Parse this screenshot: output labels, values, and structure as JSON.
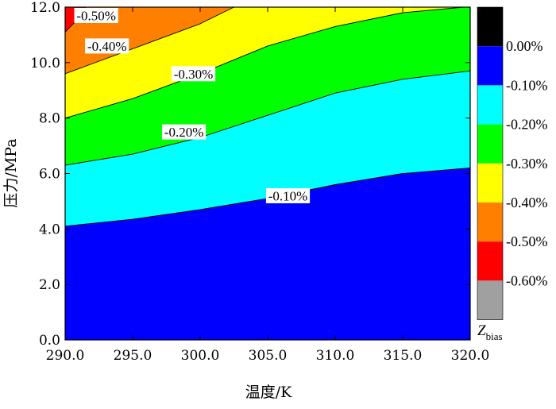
{
  "chart_data": {
    "type": "contour",
    "xlabel": "温度/K",
    "ylabel": "压力/MPa",
    "xlim": [
      290,
      320
    ],
    "ylim": [
      0,
      12
    ],
    "x_ticks": [
      "290.0",
      "295.0",
      "300.0",
      "305.0",
      "310.0",
      "315.0",
      "320.0"
    ],
    "y_ticks": [
      "0.0",
      "2.0",
      "4.0",
      "6.0",
      "8.0",
      "10.0",
      "12.0"
    ],
    "contours": [
      {
        "level": "-0.10%",
        "x": [
          290,
          295,
          300,
          305,
          310,
          315,
          320
        ],
        "y": [
          4.1,
          4.35,
          4.7,
          5.1,
          5.6,
          6.0,
          6.2
        ]
      },
      {
        "level": "-0.20%",
        "x": [
          290,
          295,
          300,
          305,
          310,
          315,
          320
        ],
        "y": [
          6.3,
          6.7,
          7.3,
          8.1,
          8.9,
          9.4,
          9.7
        ]
      },
      {
        "level": "-0.30%",
        "x": [
          290,
          295,
          300,
          305,
          310,
          315,
          319.5
        ],
        "y": [
          8.0,
          8.7,
          9.6,
          10.6,
          11.3,
          11.8,
          12.0
        ]
      },
      {
        "level": "-0.40%",
        "x": [
          290,
          295,
          300,
          302.5
        ],
        "y": [
          9.6,
          10.5,
          11.4,
          12.0
        ]
      },
      {
        "level": "-0.50%",
        "x": [
          290,
          290.8,
          291.5
        ],
        "y": [
          11.1,
          11.5,
          12.0
        ]
      }
    ],
    "contour_labels": [
      {
        "text": "-0.50%",
        "x": 292.3,
        "y": 11.7
      },
      {
        "text": "-0.40%",
        "x": 293.1,
        "y": 10.6
      },
      {
        "text": "-0.30%",
        "x": 299.5,
        "y": 9.6
      },
      {
        "text": "-0.20%",
        "x": 298.8,
        "y": 7.5
      },
      {
        "text": "-0.10%",
        "x": 306.5,
        "y": 5.2
      }
    ],
    "colorbar": {
      "title": "Z",
      "title_subscript": "bias",
      "colors": [
        "#000000",
        "#0000ff",
        "#00ffff",
        "#00ff00",
        "#ffff00",
        "#ff8000",
        "#ff0000",
        "#a0a0a0"
      ],
      "labels": [
        "0.00%",
        "-0.10%",
        "-0.20%",
        "-0.30%",
        "-0.40%",
        "-0.50%",
        "-0.60%"
      ]
    },
    "fill_colors": [
      "#0000ff",
      "#00ffff",
      "#00ff00",
      "#ffff00",
      "#ff8000",
      "#ff0000"
    ]
  }
}
